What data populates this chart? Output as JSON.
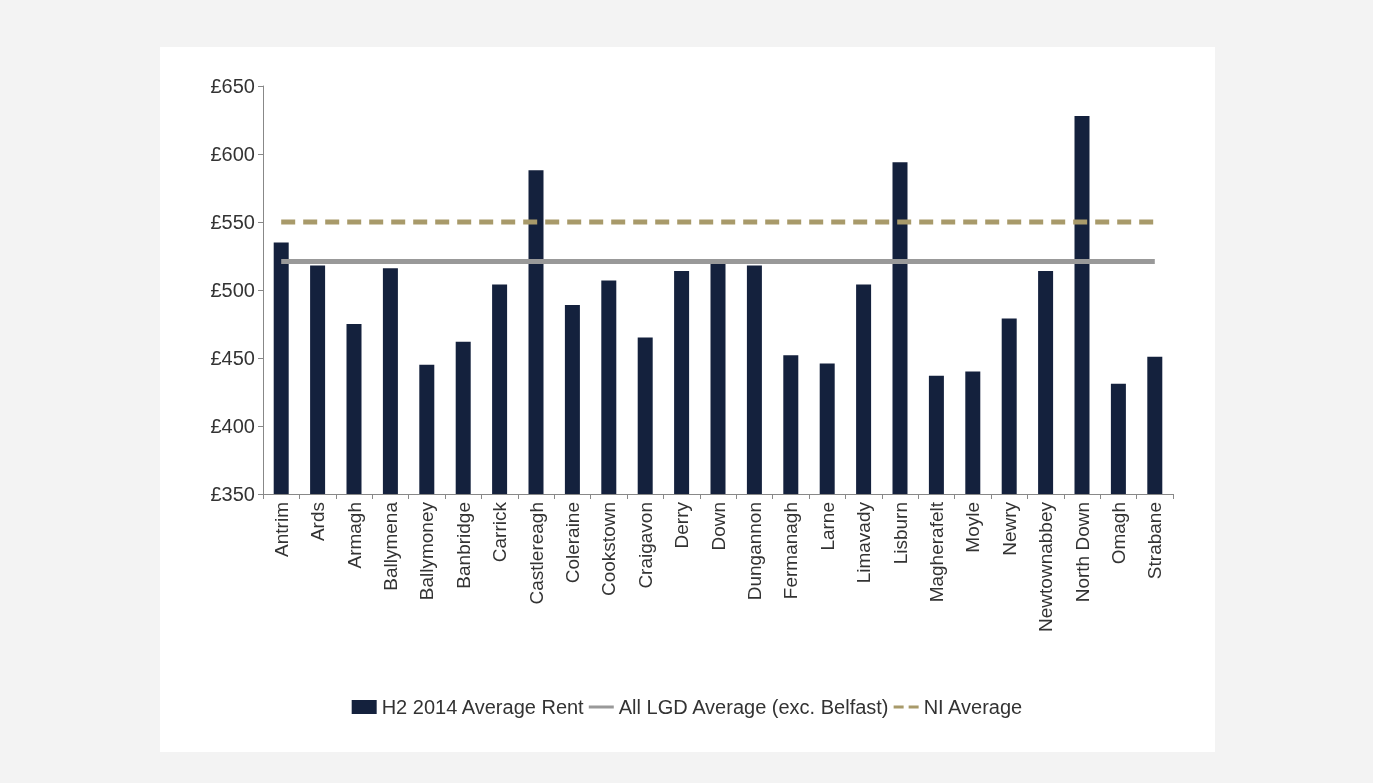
{
  "chart_data": {
    "type": "bar",
    "categories": [
      "Antrim",
      "Ards",
      "Armagh",
      "Ballymena",
      "Ballymoney",
      "Banbridge",
      "Carrick",
      "Castlereagh",
      "Coleraine",
      "Cookstown",
      "Craigavon",
      "Derry",
      "Down",
      "Dungannon",
      "Fermanagh",
      "Larne",
      "Limavady",
      "Lisburn",
      "Magherafelt",
      "Moyle",
      "Newry",
      "Newtownabbey",
      "North Down",
      "Omagh",
      "Strabane"
    ],
    "series": [
      {
        "name": "H2 2014 Average Rent",
        "color": "#14213d",
        "values": [
          535,
          518,
          475,
          516,
          445,
          462,
          504,
          588,
          489,
          507,
          465,
          514,
          520,
          518,
          452,
          446,
          504,
          594,
          437,
          440,
          479,
          514,
          628,
          431,
          451
        ]
      },
      {
        "type": "line",
        "name": "All LGD Average (exc. Belfast)",
        "color": "#999999",
        "line_style": "solid",
        "values": [
          521,
          521,
          521,
          521,
          521,
          521,
          521,
          521,
          521,
          521,
          521,
          521,
          521,
          521,
          521,
          521,
          521,
          521,
          521,
          521,
          521,
          521,
          521,
          521,
          521
        ]
      },
      {
        "type": "line",
        "name": "NI Average",
        "color": "#a89a6a",
        "line_style": "dashed",
        "values": [
          550,
          550,
          550,
          550,
          550,
          550,
          550,
          550,
          550,
          550,
          550,
          550,
          550,
          550,
          550,
          550,
          550,
          550,
          550,
          550,
          550,
          550,
          550,
          550,
          550
        ]
      }
    ],
    "ylim": [
      350,
      650
    ],
    "yticks": [
      {
        "value": 350,
        "label": "£350"
      },
      {
        "value": 400,
        "label": "£400"
      },
      {
        "value": 450,
        "label": "£450"
      },
      {
        "value": 500,
        "label": "£500"
      },
      {
        "value": 550,
        "label": "£550"
      },
      {
        "value": 600,
        "label": "£600"
      },
      {
        "value": 650,
        "label": "£650"
      }
    ],
    "grid": false,
    "legend": "bottom"
  }
}
